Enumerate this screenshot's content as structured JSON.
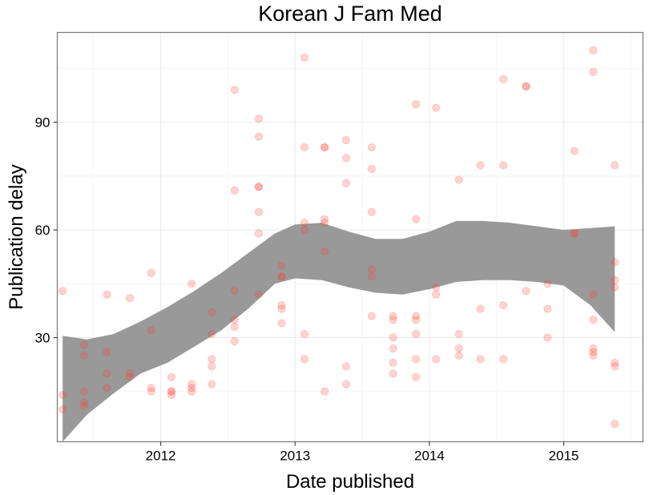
{
  "chart_data": {
    "type": "scatter",
    "title": "Korean J Fam Med",
    "xlabel": "Date published",
    "ylabel": "Publication delay",
    "xlim": [
      2011.23,
      2015.59
    ],
    "ylim": [
      1,
      115
    ],
    "x_ticks": [
      2012,
      2013,
      2014,
      2015
    ],
    "x_tick_labels": [
      "2012",
      "2013",
      "2014",
      "2015"
    ],
    "y_ticks": [
      30,
      60,
      90
    ],
    "y_tick_labels": [
      "30",
      "60",
      "90"
    ],
    "grid": true,
    "legend": "none",
    "point_color": "#ff3b30",
    "band_color": "#999999",
    "points": [
      {
        "x": 2011.27,
        "y": 43
      },
      {
        "x": 2011.27,
        "y": 14
      },
      {
        "x": 2011.27,
        "y": 10
      },
      {
        "x": 2011.43,
        "y": 28
      },
      {
        "x": 2011.43,
        "y": 25
      },
      {
        "x": 2011.43,
        "y": 15
      },
      {
        "x": 2011.43,
        "y": 12
      },
      {
        "x": 2011.43,
        "y": 11
      },
      {
        "x": 2011.6,
        "y": 42
      },
      {
        "x": 2011.6,
        "y": 26
      },
      {
        "x": 2011.6,
        "y": 20
      },
      {
        "x": 2011.6,
        "y": 16
      },
      {
        "x": 2011.77,
        "y": 41
      },
      {
        "x": 2011.77,
        "y": 20
      },
      {
        "x": 2011.77,
        "y": 19
      },
      {
        "x": 2011.93,
        "y": 48
      },
      {
        "x": 2011.93,
        "y": 32
      },
      {
        "x": 2011.93,
        "y": 16
      },
      {
        "x": 2011.93,
        "y": 15
      },
      {
        "x": 2012.08,
        "y": 19
      },
      {
        "x": 2012.08,
        "y": 15
      },
      {
        "x": 2012.08,
        "y": 15
      },
      {
        "x": 2012.08,
        "y": 14
      },
      {
        "x": 2012.23,
        "y": 45
      },
      {
        "x": 2012.23,
        "y": 17
      },
      {
        "x": 2012.23,
        "y": 16
      },
      {
        "x": 2012.23,
        "y": 15
      },
      {
        "x": 2012.38,
        "y": 37
      },
      {
        "x": 2012.38,
        "y": 31
      },
      {
        "x": 2012.38,
        "y": 24
      },
      {
        "x": 2012.38,
        "y": 22
      },
      {
        "x": 2012.38,
        "y": 17
      },
      {
        "x": 2012.55,
        "y": 99
      },
      {
        "x": 2012.55,
        "y": 71
      },
      {
        "x": 2012.55,
        "y": 43
      },
      {
        "x": 2012.55,
        "y": 35
      },
      {
        "x": 2012.55,
        "y": 33
      },
      {
        "x": 2012.55,
        "y": 29
      },
      {
        "x": 2012.73,
        "y": 91
      },
      {
        "x": 2012.73,
        "y": 86
      },
      {
        "x": 2012.73,
        "y": 72
      },
      {
        "x": 2012.73,
        "y": 72
      },
      {
        "x": 2012.73,
        "y": 65
      },
      {
        "x": 2012.73,
        "y": 59
      },
      {
        "x": 2012.73,
        "y": 42
      },
      {
        "x": 2012.9,
        "y": 50
      },
      {
        "x": 2012.9,
        "y": 47
      },
      {
        "x": 2012.9,
        "y": 47
      },
      {
        "x": 2012.9,
        "y": 39
      },
      {
        "x": 2012.9,
        "y": 38
      },
      {
        "x": 2012.9,
        "y": 34
      },
      {
        "x": 2013.07,
        "y": 108
      },
      {
        "x": 2013.07,
        "y": 83
      },
      {
        "x": 2013.07,
        "y": 62
      },
      {
        "x": 2013.07,
        "y": 60
      },
      {
        "x": 2013.07,
        "y": 31
      },
      {
        "x": 2013.07,
        "y": 24
      },
      {
        "x": 2013.22,
        "y": 83
      },
      {
        "x": 2013.22,
        "y": 83
      },
      {
        "x": 2013.22,
        "y": 63
      },
      {
        "x": 2013.22,
        "y": 62
      },
      {
        "x": 2013.22,
        "y": 54
      },
      {
        "x": 2013.22,
        "y": 15
      },
      {
        "x": 2013.38,
        "y": 85
      },
      {
        "x": 2013.38,
        "y": 80
      },
      {
        "x": 2013.38,
        "y": 73
      },
      {
        "x": 2013.38,
        "y": 22
      },
      {
        "x": 2013.38,
        "y": 17
      },
      {
        "x": 2013.57,
        "y": 83
      },
      {
        "x": 2013.57,
        "y": 77
      },
      {
        "x": 2013.57,
        "y": 65
      },
      {
        "x": 2013.57,
        "y": 49
      },
      {
        "x": 2013.57,
        "y": 47
      },
      {
        "x": 2013.57,
        "y": 36
      },
      {
        "x": 2013.73,
        "y": 36
      },
      {
        "x": 2013.73,
        "y": 35
      },
      {
        "x": 2013.73,
        "y": 30
      },
      {
        "x": 2013.73,
        "y": 27
      },
      {
        "x": 2013.73,
        "y": 23
      },
      {
        "x": 2013.73,
        "y": 20
      },
      {
        "x": 2013.9,
        "y": 95
      },
      {
        "x": 2013.9,
        "y": 63
      },
      {
        "x": 2013.9,
        "y": 36
      },
      {
        "x": 2013.9,
        "y": 35
      },
      {
        "x": 2013.9,
        "y": 31
      },
      {
        "x": 2013.9,
        "y": 24
      },
      {
        "x": 2013.9,
        "y": 19
      },
      {
        "x": 2014.05,
        "y": 94
      },
      {
        "x": 2014.05,
        "y": 44
      },
      {
        "x": 2014.05,
        "y": 42
      },
      {
        "x": 2014.05,
        "y": 24
      },
      {
        "x": 2014.22,
        "y": 74
      },
      {
        "x": 2014.22,
        "y": 31
      },
      {
        "x": 2014.22,
        "y": 27
      },
      {
        "x": 2014.22,
        "y": 25
      },
      {
        "x": 2014.38,
        "y": 78
      },
      {
        "x": 2014.38,
        "y": 38
      },
      {
        "x": 2014.38,
        "y": 24
      },
      {
        "x": 2014.55,
        "y": 102
      },
      {
        "x": 2014.55,
        "y": 78
      },
      {
        "x": 2014.55,
        "y": 39
      },
      {
        "x": 2014.55,
        "y": 24
      },
      {
        "x": 2014.72,
        "y": 100
      },
      {
        "x": 2014.72,
        "y": 100
      },
      {
        "x": 2014.72,
        "y": 43
      },
      {
        "x": 2014.88,
        "y": 45
      },
      {
        "x": 2014.88,
        "y": 38
      },
      {
        "x": 2014.88,
        "y": 30
      },
      {
        "x": 2015.08,
        "y": 82
      },
      {
        "x": 2015.08,
        "y": 59
      },
      {
        "x": 2015.08,
        "y": 59
      },
      {
        "x": 2015.22,
        "y": 110
      },
      {
        "x": 2015.22,
        "y": 104
      },
      {
        "x": 2015.22,
        "y": 42
      },
      {
        "x": 2015.22,
        "y": 35
      },
      {
        "x": 2015.22,
        "y": 27
      },
      {
        "x": 2015.22,
        "y": 26
      },
      {
        "x": 2015.22,
        "y": 25
      },
      {
        "x": 2015.38,
        "y": 78
      },
      {
        "x": 2015.38,
        "y": 51
      },
      {
        "x": 2015.38,
        "y": 46
      },
      {
        "x": 2015.38,
        "y": 44
      },
      {
        "x": 2015.38,
        "y": 23
      },
      {
        "x": 2015.38,
        "y": 22
      },
      {
        "x": 2015.38,
        "y": 6
      }
    ],
    "smooth_band": {
      "x": [
        2011.27,
        2011.45,
        2011.65,
        2011.85,
        2012.05,
        2012.25,
        2012.45,
        2012.65,
        2012.85,
        2013.0,
        2013.2,
        2013.4,
        2013.6,
        2013.8,
        2014.0,
        2014.2,
        2014.4,
        2014.6,
        2014.8,
        2015.0,
        2015.2,
        2015.38
      ],
      "upper": [
        30.5,
        29.5,
        31.0,
        34.5,
        38.5,
        43.0,
        48.0,
        53.5,
        59.0,
        61.5,
        62.0,
        59.5,
        57.5,
        57.5,
        59.5,
        62.5,
        62.5,
        62.0,
        61.0,
        60.0,
        60.5,
        61.0
      ],
      "lower": [
        0.5,
        8.5,
        14.5,
        20.0,
        23.0,
        27.5,
        32.0,
        38.0,
        45.0,
        46.5,
        46.0,
        44.0,
        42.5,
        42.0,
        43.5,
        45.5,
        46.0,
        46.0,
        45.5,
        44.5,
        39.0,
        31.5
      ]
    }
  }
}
